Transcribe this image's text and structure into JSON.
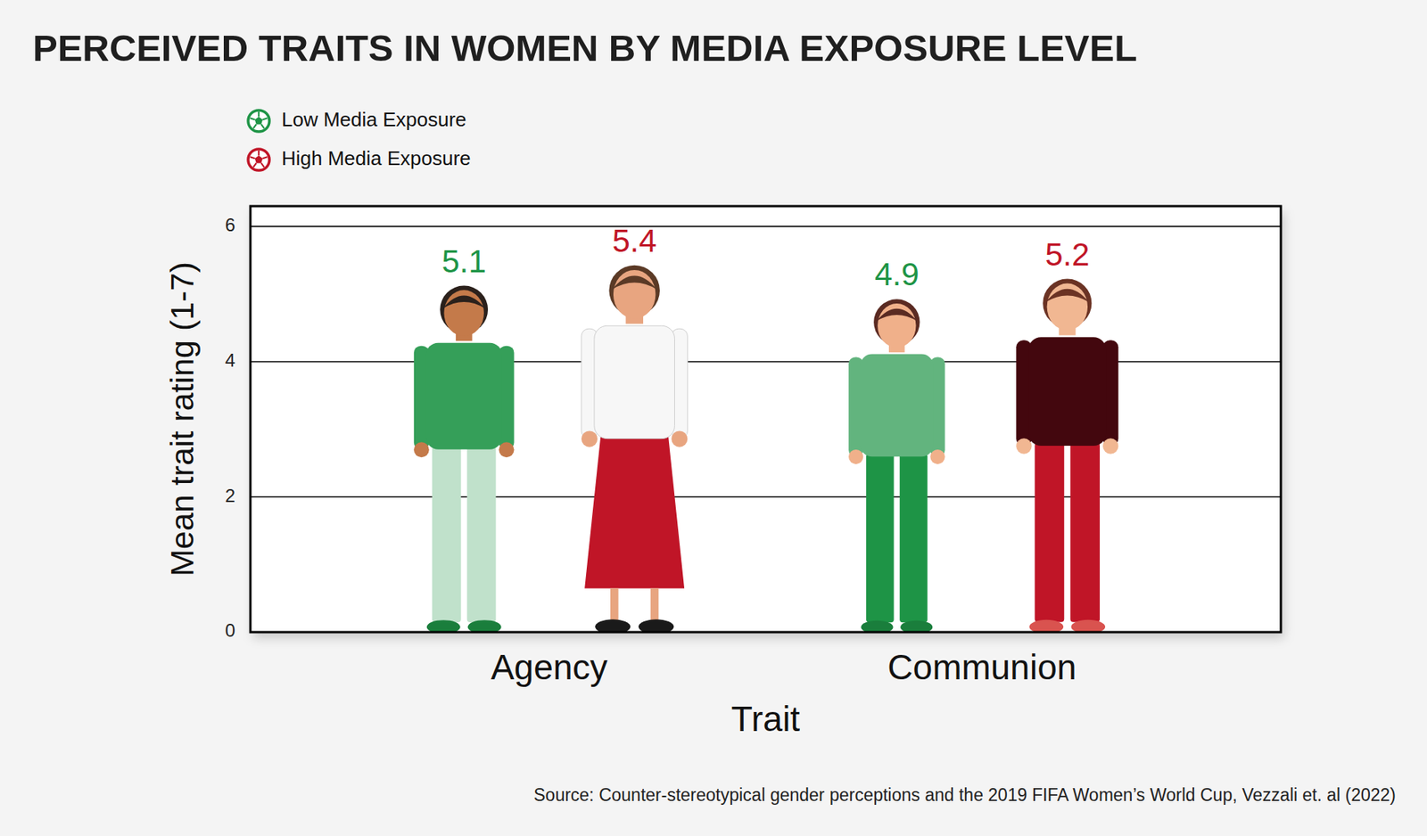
{
  "chart_data": {
    "type": "bar",
    "title": "PERCEIVED TRAITS IN WOMEN BY MEDIA EXPOSURE LEVEL",
    "source": "Source: Counter-stereotypical gender perceptions and the 2019 FIFA Women’s World Cup, Vezzali et. al (2022)",
    "x_label": "Trait",
    "y_label": "Mean trait rating (1-7)",
    "categories": [
      "Agency",
      "Communion"
    ],
    "series": [
      {
        "name": "Low Media Exposure",
        "color": "#1e9446",
        "values": [
          5.1,
          4.9
        ]
      },
      {
        "name": "High Media Exposure",
        "color": "#c01527",
        "values": [
          5.4,
          5.2
        ]
      }
    ],
    "ylim": [
      0,
      6.3
    ],
    "yticks": [
      0,
      2,
      4,
      6
    ],
    "grid": true,
    "legend": "top-left",
    "data_labels": true
  }
}
